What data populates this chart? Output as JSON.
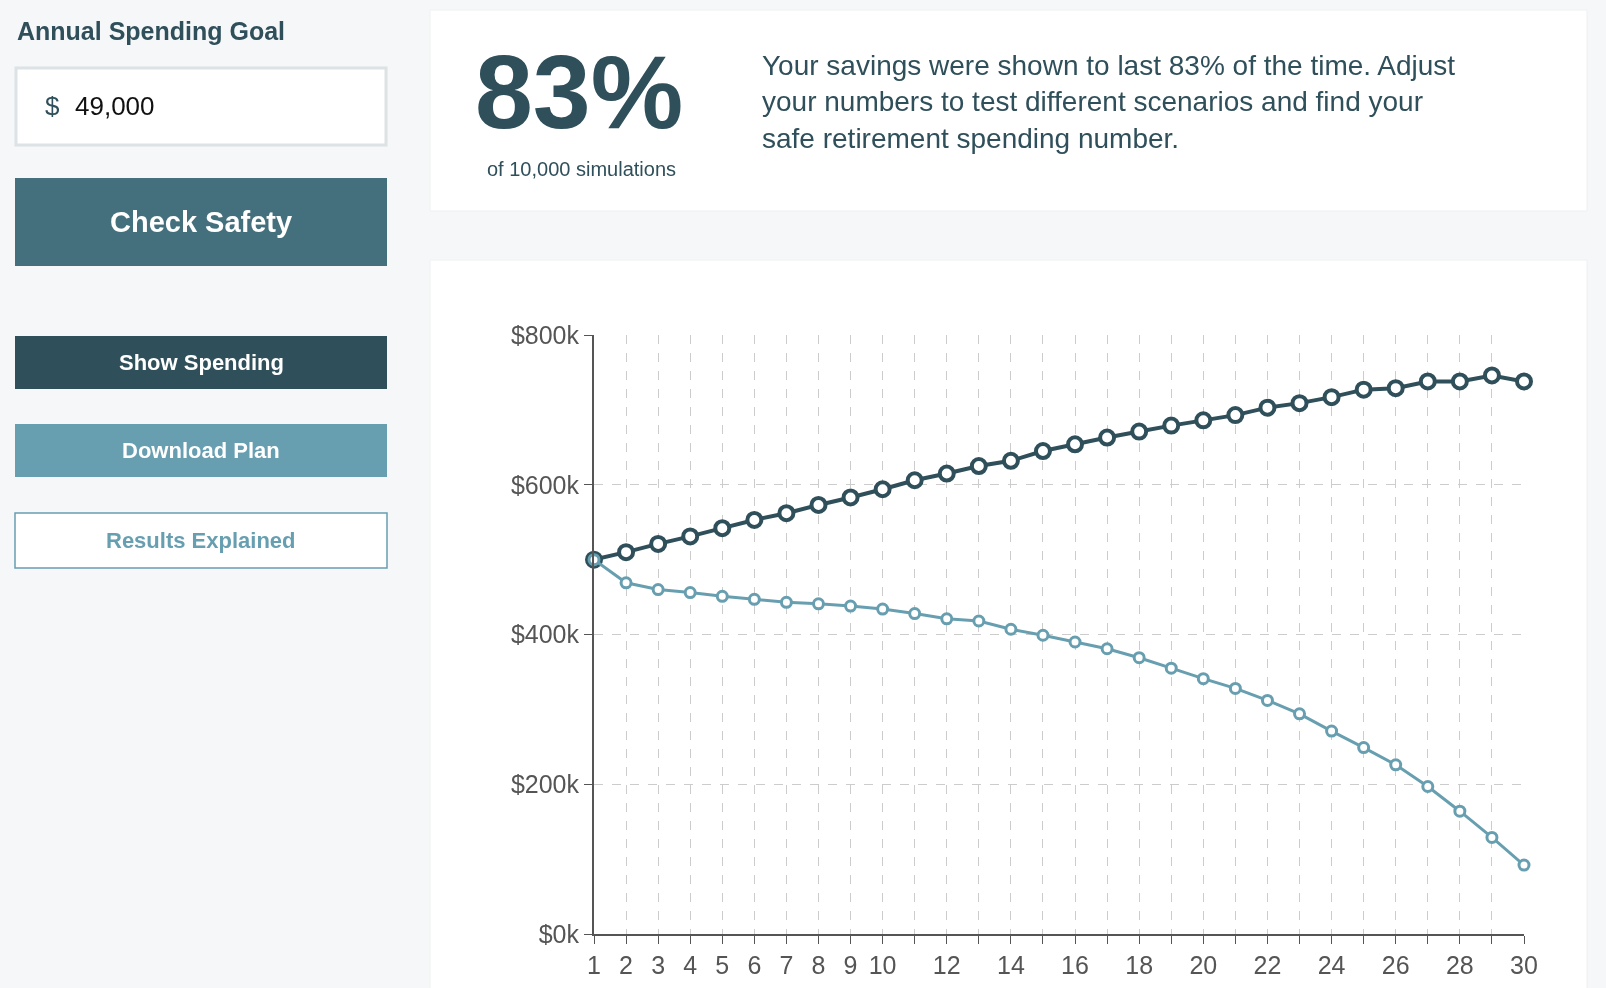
{
  "chart_data": {
    "type": "line",
    "x": [
      1,
      2,
      3,
      4,
      5,
      6,
      7,
      8,
      9,
      10,
      11,
      12,
      13,
      14,
      15,
      16,
      17,
      18,
      19,
      20,
      21,
      22,
      23,
      24,
      25,
      26,
      27,
      28,
      29,
      30
    ],
    "series": [
      {
        "color": "#2f4f5a",
        "values": [
          500,
          510,
          521,
          531,
          542,
          553,
          562,
          573,
          583,
          594,
          606,
          615,
          625,
          632,
          645,
          654,
          663,
          671,
          679,
          686,
          693,
          703,
          709,
          717,
          727,
          729,
          738,
          738,
          746,
          738
        ]
      },
      {
        "color": "#689fb0",
        "values": [
          500,
          469,
          460,
          456,
          451,
          447,
          443,
          441,
          438,
          434,
          428,
          421,
          418,
          407,
          399,
          390,
          381,
          369,
          355,
          341,
          328,
          312,
          294,
          271,
          249,
          226,
          197,
          164,
          129,
          92
        ]
      }
    ],
    "xlim": [
      1,
      30
    ],
    "xticks": [
      1,
      2,
      3,
      4,
      5,
      6,
      7,
      8,
      9,
      10,
      {
        "value": 11,
        "label": null
      },
      12,
      {
        "value": 13,
        "label": null
      },
      14,
      {
        "value": 15,
        "label": null
      },
      16,
      {
        "value": 17,
        "label": null
      },
      18,
      {
        "value": 19,
        "label": null
      },
      20,
      {
        "value": 21,
        "label": null
      },
      22,
      {
        "value": 23,
        "label": null
      },
      24,
      {
        "value": 25,
        "label": null
      },
      26,
      {
        "value": 27,
        "label": null
      },
      28,
      {
        "value": 29,
        "label": null
      },
      30
    ],
    "ylim": [
      0,
      800
    ],
    "yticks": [
      {
        "value": 0,
        "label": "$0k"
      },
      {
        "value": 200,
        "label": "$200k"
      },
      {
        "value": 400,
        "label": "$400k"
      },
      {
        "value": 600,
        "label": "$600k"
      },
      {
        "value": 800,
        "label": "$800k"
      }
    ],
    "grid": true,
    "marker": "circle",
    "line_style": "solid",
    "annotations": [
      "Annual Spending Goal",
      "$",
      "49,000",
      "Check Safety",
      "Show Spending",
      "Download Plan",
      "Results Explained",
      "83%",
      "of 10,000 simulations",
      "Your savings were shown to last 83% of the time. Adjust your numbers to test different scenarios and find your safe retirement spending number."
    ]
  }
}
